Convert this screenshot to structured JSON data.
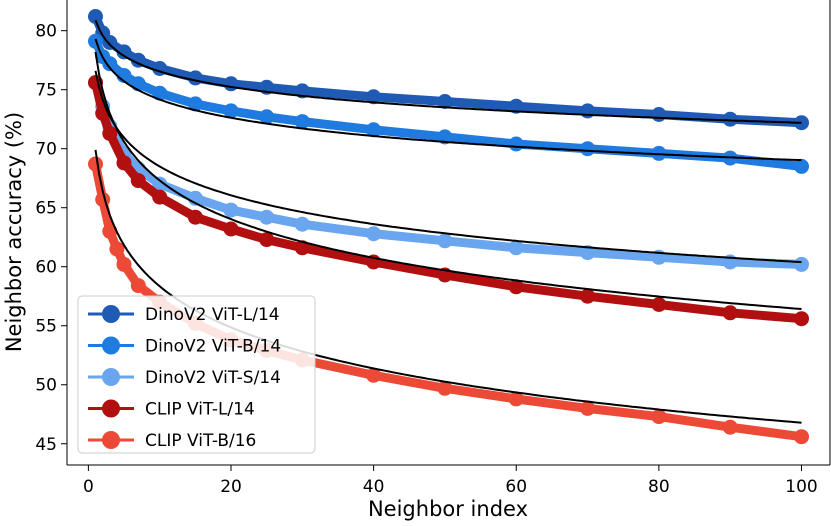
{
  "chart_data": {
    "type": "line",
    "xlabel": "Neighbor index",
    "ylabel": "Neighbor accuracy (%)",
    "xlim": [
      -3,
      104
    ],
    "ylim": [
      43.2,
      82.6
    ],
    "xticks": [
      0,
      20,
      40,
      60,
      80,
      100
    ],
    "yticks": [
      45,
      50,
      55,
      60,
      65,
      70,
      75,
      80
    ],
    "grid": false,
    "legend_position": "lower-left",
    "fit_line_color": "#000000",
    "series": [
      {
        "name": "DinoV2 ViT-L/14",
        "color": "#1f5bb5",
        "x": [
          1,
          2,
          3,
          5,
          7,
          10,
          15,
          20,
          25,
          30,
          40,
          50,
          60,
          70,
          80,
          90,
          100
        ],
        "y": [
          81.2,
          79.8,
          79.0,
          78.2,
          77.5,
          76.8,
          76.0,
          75.5,
          75.2,
          74.9,
          74.4,
          74.0,
          73.6,
          73.2,
          72.9,
          72.5,
          72.2
        ],
        "fit_a": 80.9,
        "fit_b": -1.89
      },
      {
        "name": "DinoV2 ViT-B/14",
        "color": "#1f7be0",
        "x": [
          1,
          2,
          3,
          5,
          7,
          10,
          15,
          20,
          25,
          30,
          40,
          50,
          60,
          70,
          80,
          90,
          100
        ],
        "y": [
          79.1,
          77.8,
          77.2,
          76.2,
          75.5,
          74.7,
          73.8,
          73.2,
          72.7,
          72.3,
          71.6,
          71.0,
          70.4,
          70.0,
          69.6,
          69.2,
          68.5
        ],
        "fit_a": 79.3,
        "fit_b": -2.23
      },
      {
        "name": "DinoV2 ViT-S/14",
        "color": "#6aa6ef",
        "x": [
          1,
          2,
          3,
          5,
          7,
          10,
          15,
          20,
          25,
          30,
          40,
          50,
          60,
          70,
          80,
          90,
          100
        ],
        "y": [
          75.6,
          73.6,
          71.9,
          69.6,
          68.3,
          67.0,
          65.8,
          64.8,
          64.2,
          63.6,
          62.8,
          62.2,
          61.6,
          61.2,
          60.8,
          60.4,
          60.2
        ],
        "fit_a": 76.6,
        "fit_b": -3.52
      },
      {
        "name": "CLIP ViT-L/14",
        "color": "#b21010",
        "x": [
          1,
          2,
          3,
          5,
          7,
          10,
          15,
          20,
          25,
          30,
          40,
          50,
          60,
          70,
          80,
          90,
          100
        ],
        "y": [
          75.6,
          73.0,
          71.3,
          68.8,
          67.3,
          65.9,
          64.2,
          63.2,
          62.3,
          61.6,
          60.4,
          59.3,
          58.3,
          57.5,
          56.8,
          56.1,
          55.6
        ],
        "fit_a": 78.2,
        "fit_b": -4.73
      },
      {
        "name": "CLIP ViT-B/16",
        "color": "#ec4a36",
        "x": [
          1,
          2,
          3,
          4,
          5,
          7,
          10,
          15,
          20,
          25,
          30,
          40,
          50,
          60,
          70,
          80,
          90,
          100
        ],
        "y": [
          68.7,
          65.7,
          63.0,
          61.5,
          60.2,
          58.4,
          57.0,
          55.2,
          53.8,
          52.9,
          52.1,
          50.8,
          49.7,
          48.8,
          48.0,
          47.3,
          46.4,
          45.6
        ],
        "fit_a": 69.9,
        "fit_b": -5.02
      }
    ]
  }
}
